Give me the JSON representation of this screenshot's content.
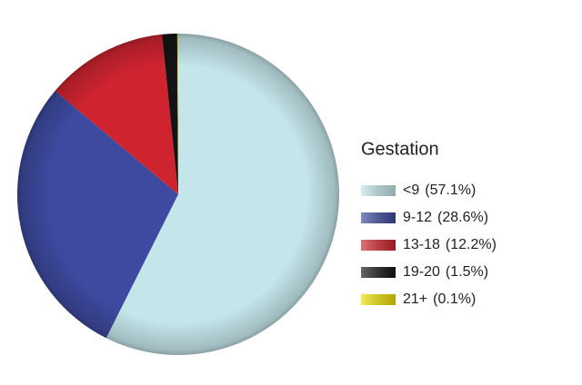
{
  "chart_data": {
    "type": "pie",
    "legend_title": "Gestation",
    "categories": [
      "<9",
      "9-12",
      "13-18",
      "19-20",
      "21+"
    ],
    "values": [
      57.1,
      28.6,
      12.2,
      1.5,
      0.1
    ],
    "value_labels": [
      "(57.1%)",
      "(28.6%)",
      "(12.2%)",
      "(1.5%)",
      "(0.1%)"
    ],
    "colors": [
      "#c4e5ea",
      "#3d4a9f",
      "#cf2430",
      "#141414",
      "#efe000"
    ],
    "legend": "right"
  }
}
